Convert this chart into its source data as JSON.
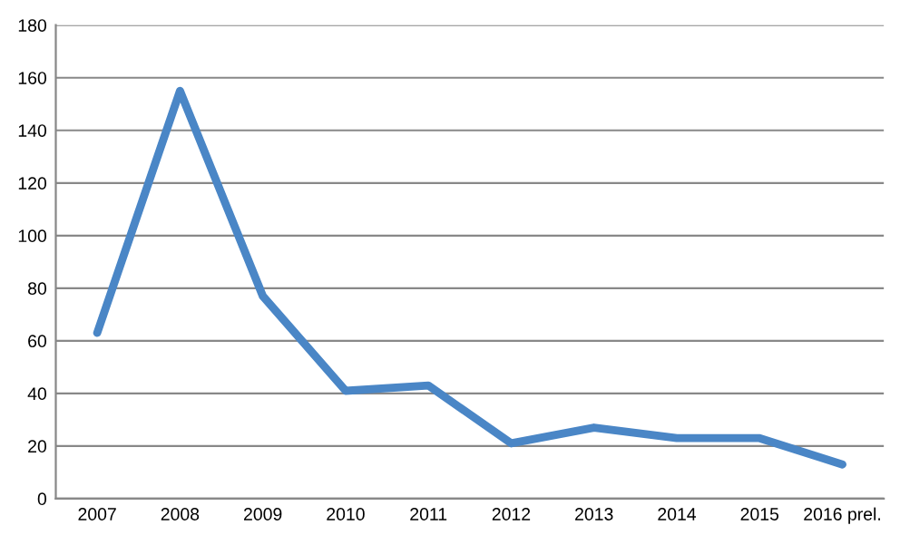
{
  "chart_data": {
    "type": "line",
    "categories": [
      "2007",
      "2008",
      "2009",
      "2010",
      "2011",
      "2012",
      "2013",
      "2014",
      "2015",
      "2016 prel."
    ],
    "series": [
      {
        "color": "#4a86c6",
        "values": [
          63,
          155,
          77,
          41,
          43,
          21,
          27,
          23,
          23,
          13
        ]
      }
    ],
    "ylim": [
      0,
      180
    ],
    "yticks": [
      0,
      20,
      40,
      60,
      80,
      100,
      120,
      140,
      160,
      180
    ],
    "grid": "y",
    "legend": false,
    "marker": "none",
    "line_style": "solid"
  }
}
